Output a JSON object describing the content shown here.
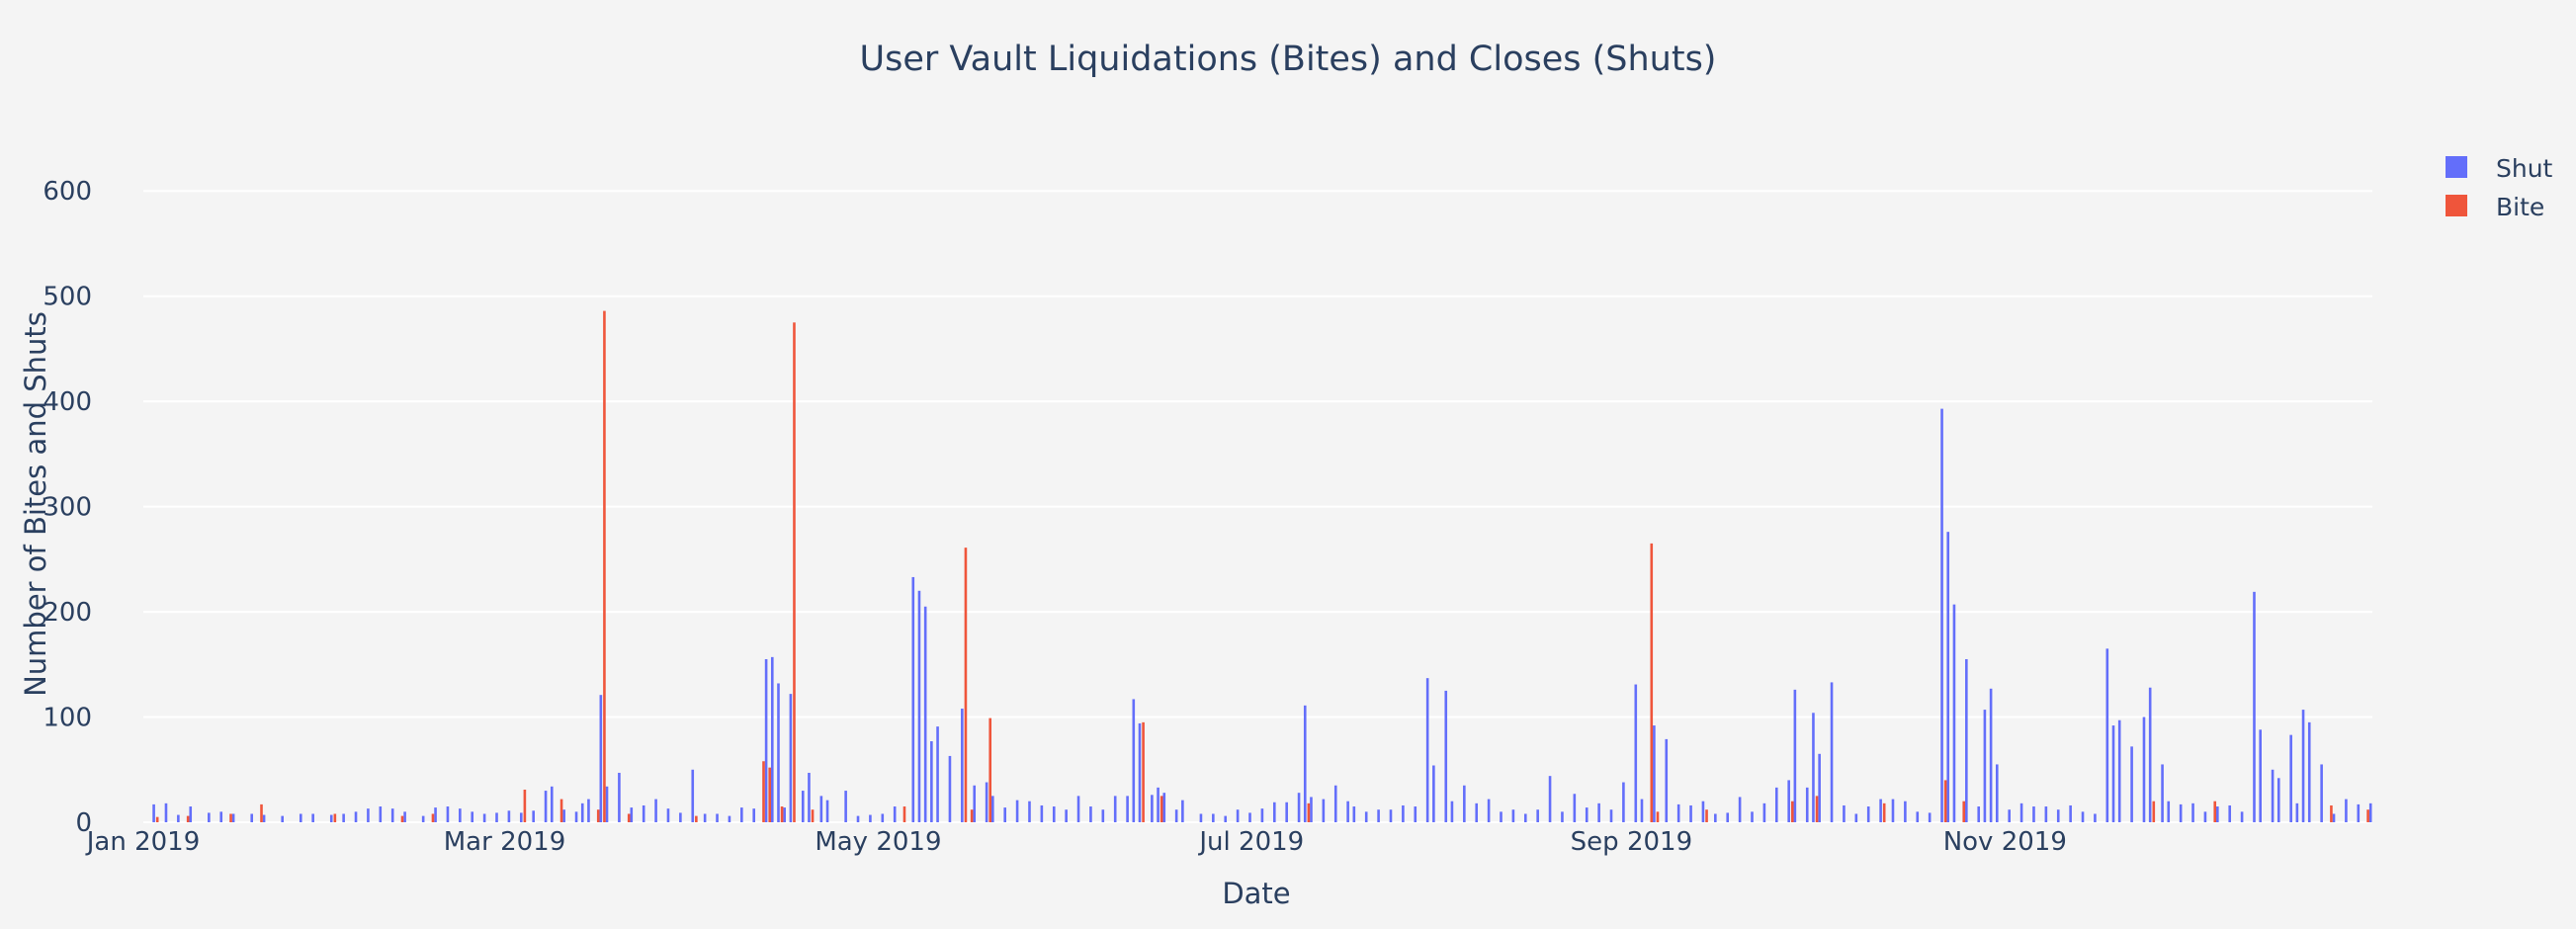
{
  "chart_data": {
    "type": "bar",
    "title": "User Vault Liquidations (Bites) and Closes (Shuts)",
    "xlabel": "Date",
    "ylabel": "Number of Bites and Shuts",
    "ylim": [
      0,
      650
    ],
    "yticks": [
      0,
      100,
      200,
      300,
      400,
      500,
      600
    ],
    "xlim": [
      "2019-01-01",
      "2019-12-31"
    ],
    "xticks": [
      {
        "date": "2019-01-01",
        "label": "Jan 2019"
      },
      {
        "date": "2019-03-01",
        "label": "Mar 2019"
      },
      {
        "date": "2019-05-01",
        "label": "May 2019"
      },
      {
        "date": "2019-07-01",
        "label": "Jul 2019"
      },
      {
        "date": "2019-09-01",
        "label": "Sep 2019"
      },
      {
        "date": "2019-11-01",
        "label": "Nov 2019"
      }
    ],
    "legend_position": "top-right",
    "series": [
      {
        "name": "Shut",
        "color": "#636efa",
        "points": [
          [
            "2019-01-03",
            17
          ],
          [
            "2019-01-05",
            18
          ],
          [
            "2019-01-07",
            7
          ],
          [
            "2019-01-09",
            15
          ],
          [
            "2019-01-12",
            9
          ],
          [
            "2019-01-14",
            10
          ],
          [
            "2019-01-16",
            8
          ],
          [
            "2019-01-19",
            8
          ],
          [
            "2019-01-21",
            7
          ],
          [
            "2019-01-24",
            6
          ],
          [
            "2019-01-27",
            8
          ],
          [
            "2019-01-29",
            8
          ],
          [
            "2019-02-01",
            7
          ],
          [
            "2019-02-03",
            8
          ],
          [
            "2019-02-05",
            10
          ],
          [
            "2019-02-07",
            13
          ],
          [
            "2019-02-09",
            15
          ],
          [
            "2019-02-11",
            13
          ],
          [
            "2019-02-13",
            10
          ],
          [
            "2019-02-16",
            6
          ],
          [
            "2019-02-18",
            14
          ],
          [
            "2019-02-20",
            15
          ],
          [
            "2019-02-22",
            13
          ],
          [
            "2019-02-24",
            10
          ],
          [
            "2019-02-26",
            8
          ],
          [
            "2019-02-28",
            9
          ],
          [
            "2019-03-02",
            11
          ],
          [
            "2019-03-04",
            9
          ],
          [
            "2019-03-06",
            11
          ],
          [
            "2019-03-08",
            30
          ],
          [
            "2019-03-09",
            34
          ],
          [
            "2019-03-11",
            12
          ],
          [
            "2019-03-13",
            10
          ],
          [
            "2019-03-14",
            18
          ],
          [
            "2019-03-15",
            22
          ],
          [
            "2019-03-17",
            121
          ],
          [
            "2019-03-18",
            34
          ],
          [
            "2019-03-20",
            47
          ],
          [
            "2019-03-22",
            14
          ],
          [
            "2019-03-24",
            16
          ],
          [
            "2019-03-26",
            22
          ],
          [
            "2019-03-28",
            13
          ],
          [
            "2019-03-30",
            9
          ],
          [
            "2019-04-01",
            50
          ],
          [
            "2019-04-03",
            8
          ],
          [
            "2019-04-05",
            8
          ],
          [
            "2019-04-07",
            6
          ],
          [
            "2019-04-09",
            14
          ],
          [
            "2019-04-11",
            13
          ],
          [
            "2019-04-13",
            155
          ],
          [
            "2019-04-14",
            157
          ],
          [
            "2019-04-15",
            132
          ],
          [
            "2019-04-16",
            14
          ],
          [
            "2019-04-17",
            122
          ],
          [
            "2019-04-19",
            30
          ],
          [
            "2019-04-20",
            47
          ],
          [
            "2019-04-22",
            25
          ],
          [
            "2019-04-23",
            21
          ],
          [
            "2019-04-26",
            30
          ],
          [
            "2019-04-28",
            6
          ],
          [
            "2019-04-30",
            7
          ],
          [
            "2019-05-02",
            8
          ],
          [
            "2019-05-04",
            15
          ],
          [
            "2019-05-07",
            233
          ],
          [
            "2019-05-08",
            220
          ],
          [
            "2019-05-09",
            205
          ],
          [
            "2019-05-10",
            77
          ],
          [
            "2019-05-11",
            91
          ],
          [
            "2019-05-13",
            63
          ],
          [
            "2019-05-15",
            108
          ],
          [
            "2019-05-17",
            35
          ],
          [
            "2019-05-19",
            38
          ],
          [
            "2019-05-20",
            25
          ],
          [
            "2019-05-22",
            14
          ],
          [
            "2019-05-24",
            21
          ],
          [
            "2019-05-26",
            20
          ],
          [
            "2019-05-28",
            16
          ],
          [
            "2019-05-30",
            15
          ],
          [
            "2019-06-01",
            12
          ],
          [
            "2019-06-03",
            25
          ],
          [
            "2019-06-05",
            15
          ],
          [
            "2019-06-07",
            12
          ],
          [
            "2019-06-09",
            25
          ],
          [
            "2019-06-11",
            25
          ],
          [
            "2019-06-12",
            117
          ],
          [
            "2019-06-13",
            94
          ],
          [
            "2019-06-15",
            26
          ],
          [
            "2019-06-16",
            33
          ],
          [
            "2019-06-17",
            28
          ],
          [
            "2019-06-19",
            12
          ],
          [
            "2019-06-20",
            21
          ],
          [
            "2019-06-23",
            8
          ],
          [
            "2019-06-25",
            8
          ],
          [
            "2019-06-27",
            6
          ],
          [
            "2019-06-29",
            12
          ],
          [
            "2019-07-01",
            9
          ],
          [
            "2019-07-03",
            13
          ],
          [
            "2019-07-05",
            19
          ],
          [
            "2019-07-07",
            19
          ],
          [
            "2019-07-09",
            28
          ],
          [
            "2019-07-10",
            111
          ],
          [
            "2019-07-11",
            24
          ],
          [
            "2019-07-13",
            22
          ],
          [
            "2019-07-15",
            35
          ],
          [
            "2019-07-17",
            20
          ],
          [
            "2019-07-18",
            15
          ],
          [
            "2019-07-20",
            10
          ],
          [
            "2019-07-22",
            12
          ],
          [
            "2019-07-24",
            12
          ],
          [
            "2019-07-26",
            16
          ],
          [
            "2019-07-28",
            15
          ],
          [
            "2019-07-30",
            137
          ],
          [
            "2019-07-31",
            54
          ],
          [
            "2019-08-02",
            125
          ],
          [
            "2019-08-03",
            20
          ],
          [
            "2019-08-05",
            35
          ],
          [
            "2019-08-07",
            18
          ],
          [
            "2019-08-09",
            22
          ],
          [
            "2019-08-11",
            10
          ],
          [
            "2019-08-13",
            12
          ],
          [
            "2019-08-15",
            8
          ],
          [
            "2019-08-17",
            12
          ],
          [
            "2019-08-19",
            44
          ],
          [
            "2019-08-21",
            10
          ],
          [
            "2019-08-23",
            27
          ],
          [
            "2019-08-25",
            14
          ],
          [
            "2019-08-27",
            18
          ],
          [
            "2019-08-29",
            12
          ],
          [
            "2019-08-31",
            38
          ],
          [
            "2019-09-02",
            131
          ],
          [
            "2019-09-03",
            22
          ],
          [
            "2019-09-05",
            92
          ],
          [
            "2019-09-07",
            79
          ],
          [
            "2019-09-09",
            17
          ],
          [
            "2019-09-11",
            16
          ],
          [
            "2019-09-13",
            20
          ],
          [
            "2019-09-15",
            8
          ],
          [
            "2019-09-17",
            9
          ],
          [
            "2019-09-19",
            24
          ],
          [
            "2019-09-21",
            10
          ],
          [
            "2019-09-23",
            18
          ],
          [
            "2019-09-25",
            33
          ],
          [
            "2019-09-27",
            40
          ],
          [
            "2019-09-28",
            126
          ],
          [
            "2019-09-30",
            33
          ],
          [
            "2019-10-01",
            104
          ],
          [
            "2019-10-02",
            65
          ],
          [
            "2019-10-04",
            133
          ],
          [
            "2019-10-06",
            16
          ],
          [
            "2019-10-08",
            8
          ],
          [
            "2019-10-10",
            15
          ],
          [
            "2019-10-12",
            22
          ],
          [
            "2019-10-14",
            22
          ],
          [
            "2019-10-16",
            20
          ],
          [
            "2019-10-18",
            10
          ],
          [
            "2019-10-20",
            9
          ],
          [
            "2019-10-22",
            393
          ],
          [
            "2019-10-23",
            276
          ],
          [
            "2019-10-24",
            207
          ],
          [
            "2019-10-26",
            155
          ],
          [
            "2019-10-28",
            15
          ],
          [
            "2019-10-29",
            107
          ],
          [
            "2019-10-30",
            127
          ],
          [
            "2019-10-31",
            55
          ],
          [
            "2019-11-02",
            12
          ],
          [
            "2019-11-04",
            18
          ],
          [
            "2019-11-06",
            15
          ],
          [
            "2019-11-08",
            15
          ],
          [
            "2019-11-10",
            12
          ],
          [
            "2019-11-12",
            16
          ],
          [
            "2019-11-14",
            10
          ],
          [
            "2019-11-16",
            8
          ],
          [
            "2019-11-18",
            165
          ],
          [
            "2019-11-19",
            92
          ],
          [
            "2019-11-20",
            97
          ],
          [
            "2019-11-22",
            72
          ],
          [
            "2019-11-24",
            100
          ],
          [
            "2019-11-25",
            128
          ],
          [
            "2019-11-27",
            55
          ],
          [
            "2019-11-28",
            20
          ],
          [
            "2019-11-30",
            17
          ],
          [
            "2019-12-02",
            18
          ],
          [
            "2019-12-04",
            10
          ],
          [
            "2019-12-06",
            15
          ],
          [
            "2019-12-08",
            16
          ],
          [
            "2019-12-10",
            10
          ],
          [
            "2019-12-12",
            219
          ],
          [
            "2019-12-13",
            88
          ],
          [
            "2019-12-15",
            50
          ],
          [
            "2019-12-16",
            42
          ],
          [
            "2019-12-18",
            83
          ],
          [
            "2019-12-19",
            18
          ],
          [
            "2019-12-20",
            107
          ],
          [
            "2019-12-21",
            95
          ],
          [
            "2019-12-23",
            55
          ],
          [
            "2019-12-25",
            8
          ],
          [
            "2019-12-27",
            22
          ],
          [
            "2019-12-29",
            17
          ],
          [
            "2019-12-31",
            18
          ]
        ]
      },
      {
        "name": "Bite",
        "color": "#ef553b",
        "points": [
          [
            "2019-01-03",
            5
          ],
          [
            "2019-01-08",
            6
          ],
          [
            "2019-01-15",
            8
          ],
          [
            "2019-01-20",
            17
          ],
          [
            "2019-02-01",
            8
          ],
          [
            "2019-02-12",
            6
          ],
          [
            "2019-02-17",
            8
          ],
          [
            "2019-03-04",
            31
          ],
          [
            "2019-03-10",
            22
          ],
          [
            "2019-03-16",
            12
          ],
          [
            "2019-03-17",
            486
          ],
          [
            "2019-03-21",
            8
          ],
          [
            "2019-04-01",
            6
          ],
          [
            "2019-04-12",
            58
          ],
          [
            "2019-04-13",
            52
          ],
          [
            "2019-04-15",
            15
          ],
          [
            "2019-04-17",
            475
          ],
          [
            "2019-04-20",
            12
          ],
          [
            "2019-05-05",
            15
          ],
          [
            "2019-05-15",
            261
          ],
          [
            "2019-05-16",
            12
          ],
          [
            "2019-05-19",
            99
          ],
          [
            "2019-06-13",
            95
          ],
          [
            "2019-06-16",
            25
          ],
          [
            "2019-07-10",
            18
          ],
          [
            "2019-09-04",
            265
          ],
          [
            "2019-09-05",
            10
          ],
          [
            "2019-09-13",
            12
          ],
          [
            "2019-09-27",
            20
          ],
          [
            "2019-10-01",
            25
          ],
          [
            "2019-10-12",
            18
          ],
          [
            "2019-10-22",
            40
          ],
          [
            "2019-10-25",
            20
          ],
          [
            "2019-11-25",
            20
          ],
          [
            "2019-12-05",
            20
          ],
          [
            "2019-12-24",
            16
          ],
          [
            "2019-12-30",
            12
          ]
        ]
      }
    ]
  }
}
